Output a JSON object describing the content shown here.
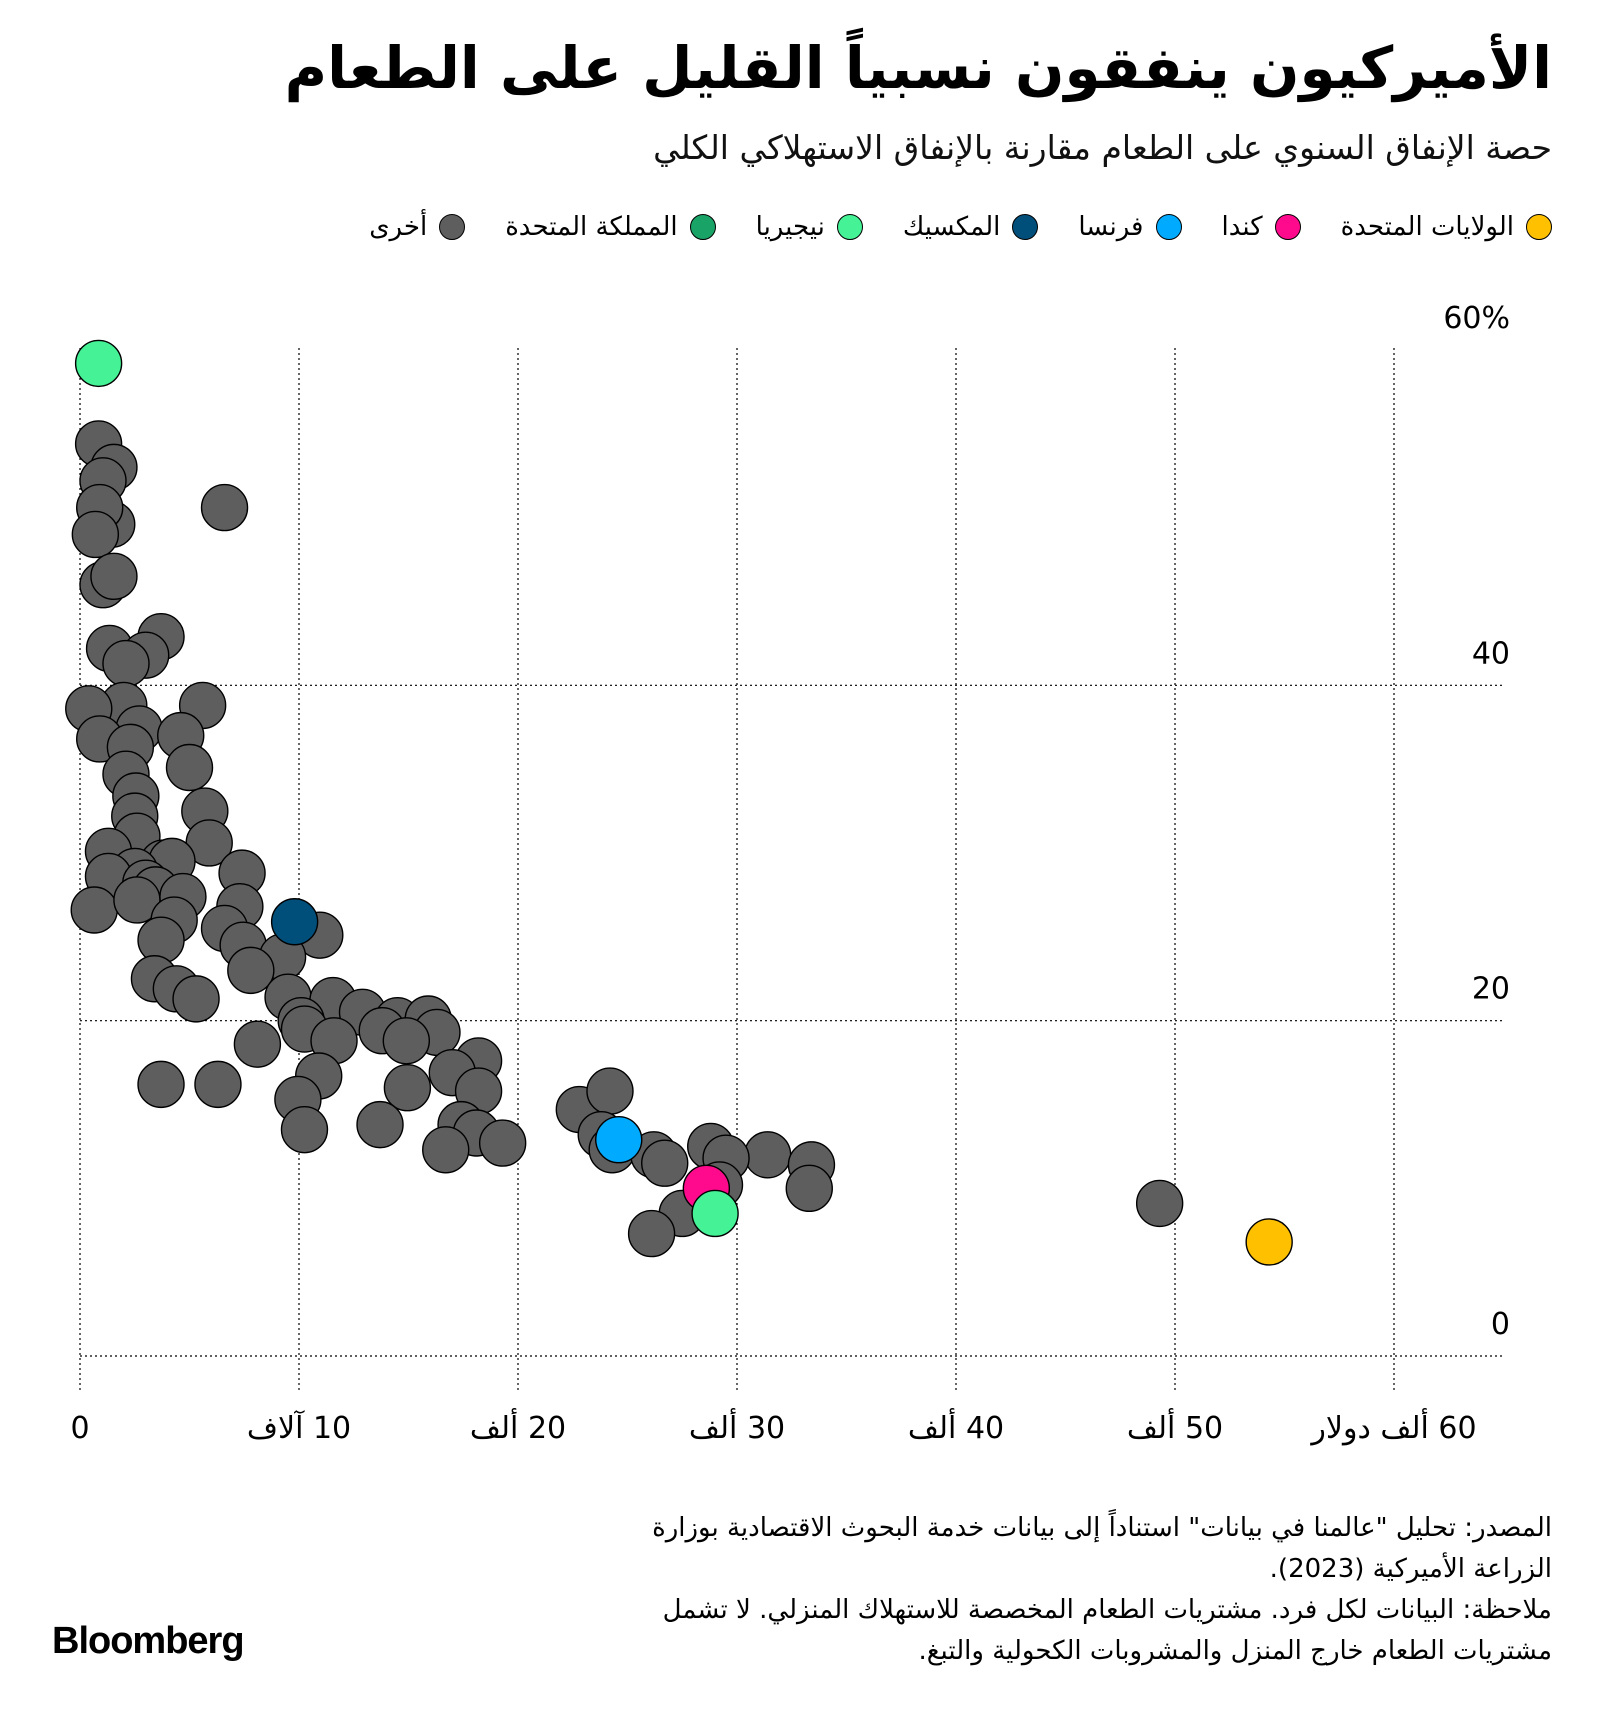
{
  "title": "الأميركيون ينفقون نسبياً القليل على الطعام",
  "subtitle": "حصة الإنفاق السنوي على الطعام مقارنة بالإنفاق الاستهلاكي الكلي",
  "legend": [
    {
      "label": "الولايات المتحدة",
      "color": "#ffc000"
    },
    {
      "label": "كندا",
      "color": "#ff0a8c"
    },
    {
      "label": "فرنسا",
      "color": "#00aaff"
    },
    {
      "label": "المكسيك",
      "color": "#004f7a"
    },
    {
      "label": "نيجيريا",
      "color": "#45f296"
    },
    {
      "label": "المملكة المتحدة",
      "color": "#1aa367"
    },
    {
      "label": "أخرى",
      "color": "#5e5e5e"
    }
  ],
  "footer": {
    "source": "المصدر: تحليل \"عالمنا في بيانات\" استناداً إلى بيانات خدمة البحوث الاقتصادية بوزارة الزراعة الأميركية (2023).",
    "note": "ملاحظة: البيانات لكل فرد. مشتريات الطعام المخصصة للاستهلاك المنزلي. لا تشمل مشتريات الطعام خارج المنزل والمشروبات الكحولية والتبغ."
  },
  "logo": "Bloomberg",
  "chart_data": {
    "type": "scatter",
    "xlim": [
      0,
      60000
    ],
    "ylim": [
      0,
      60
    ],
    "x_ticks": [
      {
        "value": 0,
        "label": "0"
      },
      {
        "value": 10000,
        "label": "10 آلاف"
      },
      {
        "value": 20000,
        "label": "20 ألف"
      },
      {
        "value": 30000,
        "label": "30 ألف"
      },
      {
        "value": 40000,
        "label": "40 ألف"
      },
      {
        "value": 50000,
        "label": "50 ألف"
      },
      {
        "value": 60000,
        "label": "60 ألف دولار"
      }
    ],
    "y_ticks": [
      {
        "value": 0,
        "label": "0"
      },
      {
        "value": 20,
        "label": "20"
      },
      {
        "value": 40,
        "label": "40"
      },
      {
        "value": 60,
        "label": "60%"
      }
    ],
    "grid": true,
    "legend_position": "top",
    "series": [
      {
        "name": "أخرى",
        "color": "#5e5e5e",
        "points": [
          [
            850,
            54.4
          ],
          [
            1550,
            53.0
          ],
          [
            1050,
            52.2
          ],
          [
            1450,
            49.6
          ],
          [
            900,
            50.6
          ],
          [
            700,
            49.0
          ],
          [
            6600,
            50.6
          ],
          [
            1050,
            46.0
          ],
          [
            1550,
            46.5
          ],
          [
            3700,
            42.9
          ],
          [
            1350,
            42.2
          ],
          [
            3000,
            41.8
          ],
          [
            2100,
            41.3
          ],
          [
            2000,
            38.8
          ],
          [
            400,
            38.6
          ],
          [
            5600,
            38.8
          ],
          [
            2700,
            37.4
          ],
          [
            900,
            36.8
          ],
          [
            4600,
            37.0
          ],
          [
            2300,
            36.3
          ],
          [
            5000,
            35.1
          ],
          [
            2100,
            34.7
          ],
          [
            2550,
            33.4
          ],
          [
            2500,
            32.2
          ],
          [
            5700,
            32.5
          ],
          [
            2600,
            31.0
          ],
          [
            5900,
            30.6
          ],
          [
            1300,
            30.1
          ],
          [
            3800,
            29.4
          ],
          [
            4200,
            29.5
          ],
          [
            2500,
            28.9
          ],
          [
            1300,
            28.6
          ],
          [
            7400,
            28.8
          ],
          [
            3000,
            28.2
          ],
          [
            3450,
            27.8
          ],
          [
            650,
            26.6
          ],
          [
            2600,
            27.2
          ],
          [
            4700,
            27.4
          ],
          [
            7300,
            26.8
          ],
          [
            4300,
            26.0
          ],
          [
            6600,
            25.5
          ],
          [
            10950,
            25.1
          ],
          [
            3700,
            24.8
          ],
          [
            7450,
            24.5
          ],
          [
            9250,
            23.8
          ],
          [
            7800,
            23.0
          ],
          [
            3400,
            22.5
          ],
          [
            4400,
            21.9
          ],
          [
            5300,
            21.3
          ],
          [
            9500,
            21.4
          ],
          [
            11550,
            21.2
          ],
          [
            12900,
            20.5
          ],
          [
            14500,
            20.0
          ],
          [
            15900,
            20.1
          ],
          [
            10100,
            20.0
          ],
          [
            10250,
            19.5
          ],
          [
            13800,
            19.4
          ],
          [
            16300,
            19.3
          ],
          [
            14900,
            18.8
          ],
          [
            11600,
            18.8
          ],
          [
            8100,
            18.6
          ],
          [
            18200,
            17.6
          ],
          [
            17000,
            16.9
          ],
          [
            10900,
            16.7
          ],
          [
            3700,
            16.2
          ],
          [
            6300,
            16.2
          ],
          [
            14950,
            16.0
          ],
          [
            18200,
            15.8
          ],
          [
            9950,
            15.3
          ],
          [
            22800,
            14.7
          ],
          [
            24200,
            15.8
          ],
          [
            13700,
            13.8
          ],
          [
            17400,
            13.8
          ],
          [
            10250,
            13.5
          ],
          [
            18100,
            13.3
          ],
          [
            19300,
            12.7
          ],
          [
            16700,
            12.3
          ],
          [
            23800,
            13.2
          ],
          [
            24300,
            12.3
          ],
          [
            26200,
            12.0
          ],
          [
            28800,
            12.5
          ],
          [
            31400,
            12.0
          ],
          [
            26700,
            11.5
          ],
          [
            29500,
            11.8
          ],
          [
            33400,
            11.4
          ],
          [
            33300,
            10.0
          ],
          [
            29200,
            10.2
          ],
          [
            27500,
            8.5
          ],
          [
            26100,
            7.3
          ],
          [
            49300,
            9.1
          ]
        ]
      },
      {
        "name": "الولايات المتحدة",
        "color": "#ffc000",
        "points": [
          [
            54300,
            6.8
          ]
        ]
      },
      {
        "name": "كندا",
        "color": "#ff0a8c",
        "points": [
          [
            28600,
            10.0
          ]
        ]
      },
      {
        "name": "فرنسا",
        "color": "#00aaff",
        "points": [
          [
            24600,
            12.9
          ]
        ]
      },
      {
        "name": "المكسيك",
        "color": "#004f7a",
        "points": [
          [
            9800,
            25.9
          ]
        ]
      },
      {
        "name": "نيجيريا",
        "color": "#45f296",
        "points": [
          [
            850,
            59.2
          ],
          [
            29000,
            8.5
          ]
        ]
      }
    ]
  }
}
